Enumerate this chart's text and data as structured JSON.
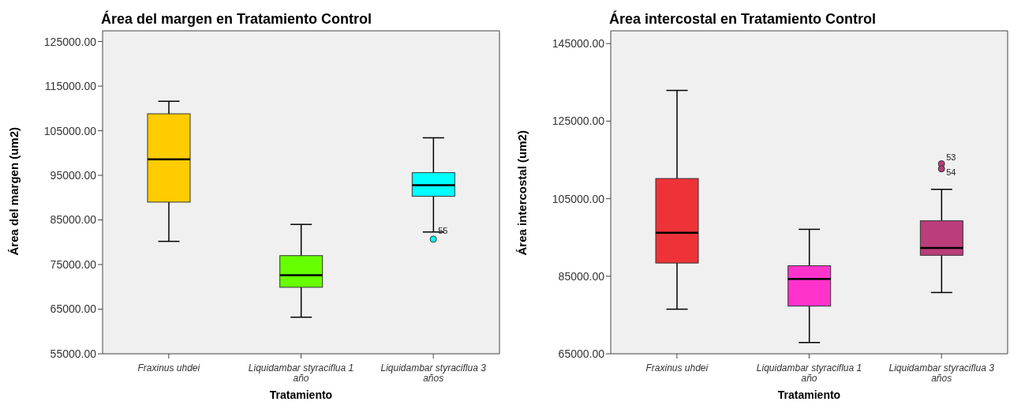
{
  "chart_data": [
    {
      "type": "box",
      "title": "Área del margen en Tratamiento Control",
      "xlabel": "Tratamiento",
      "ylabel": "Área del margen (um2)",
      "categories": [
        "Fraxinus uhdei",
        "Liquidambar styraciflua 1 año",
        "Liquidambar styraciflua 3 años"
      ],
      "colors": [
        "#ffcc00",
        "#66ff00",
        "#00ffff"
      ],
      "boxes": [
        {
          "low": 80200,
          "q1": 89000,
          "median": 98600,
          "q3": 108800,
          "high": 111600
        },
        {
          "low": 63200,
          "q1": 69900,
          "median": 72600,
          "q3": 77000,
          "high": 84000
        },
        {
          "low": 82300,
          "q1": 90300,
          "median": 92800,
          "q3": 95600,
          "high": 103400,
          "outliers": [
            80700
          ]
        }
      ],
      "annotations": [
        "55"
      ],
      "ylim": [
        55000,
        127400
      ],
      "yticks": [
        {
          "value": 55000,
          "label": "55000.00"
        },
        {
          "value": 65000,
          "label": "65000.00"
        },
        {
          "value": 75000,
          "label": "75000.00"
        },
        {
          "value": 85000,
          "label": "85000.00"
        },
        {
          "value": 95000,
          "label": "95000.00"
        },
        {
          "value": 105000,
          "label": "105000.00"
        },
        {
          "value": 115000,
          "label": "115000.00"
        },
        {
          "value": 125000,
          "label": "125000.00"
        }
      ],
      "grid": false,
      "legend": false
    },
    {
      "type": "box",
      "title": "Área intercostal en Tratamiento Control",
      "xlabel": "Tratamiento",
      "ylabel": "Área intercostal (um2)",
      "categories": [
        "Fraxinus uhdei",
        "Liquidambar styraciflua 1 año",
        "Liquidambar styraciflua 3 años"
      ],
      "colors": [
        "#ee3338",
        "#ff33cc",
        "#bb3d7a"
      ],
      "boxes": [
        {
          "low": 76500,
          "q1": 88400,
          "median": 96200,
          "q3": 110200,
          "high": 132900
        },
        {
          "low": 67900,
          "q1": 77300,
          "median": 84300,
          "q3": 87700,
          "high": 97100
        },
        {
          "low": 80800,
          "q1": 90400,
          "median": 92300,
          "q3": 99300,
          "high": 107400,
          "outliers": [
            114000,
            112700
          ]
        }
      ],
      "annotations": [
        "53",
        "54"
      ],
      "ylim": [
        65000,
        148300
      ],
      "yticks": [
        {
          "value": 65000,
          "label": "65000.00"
        },
        {
          "value": 85000,
          "label": "85000.00"
        },
        {
          "value": 105000,
          "label": "105000.00"
        },
        {
          "value": 125000,
          "label": "125000.00"
        },
        {
          "value": 145000,
          "label": "145000.00"
        }
      ],
      "grid": false,
      "legend": false
    }
  ]
}
